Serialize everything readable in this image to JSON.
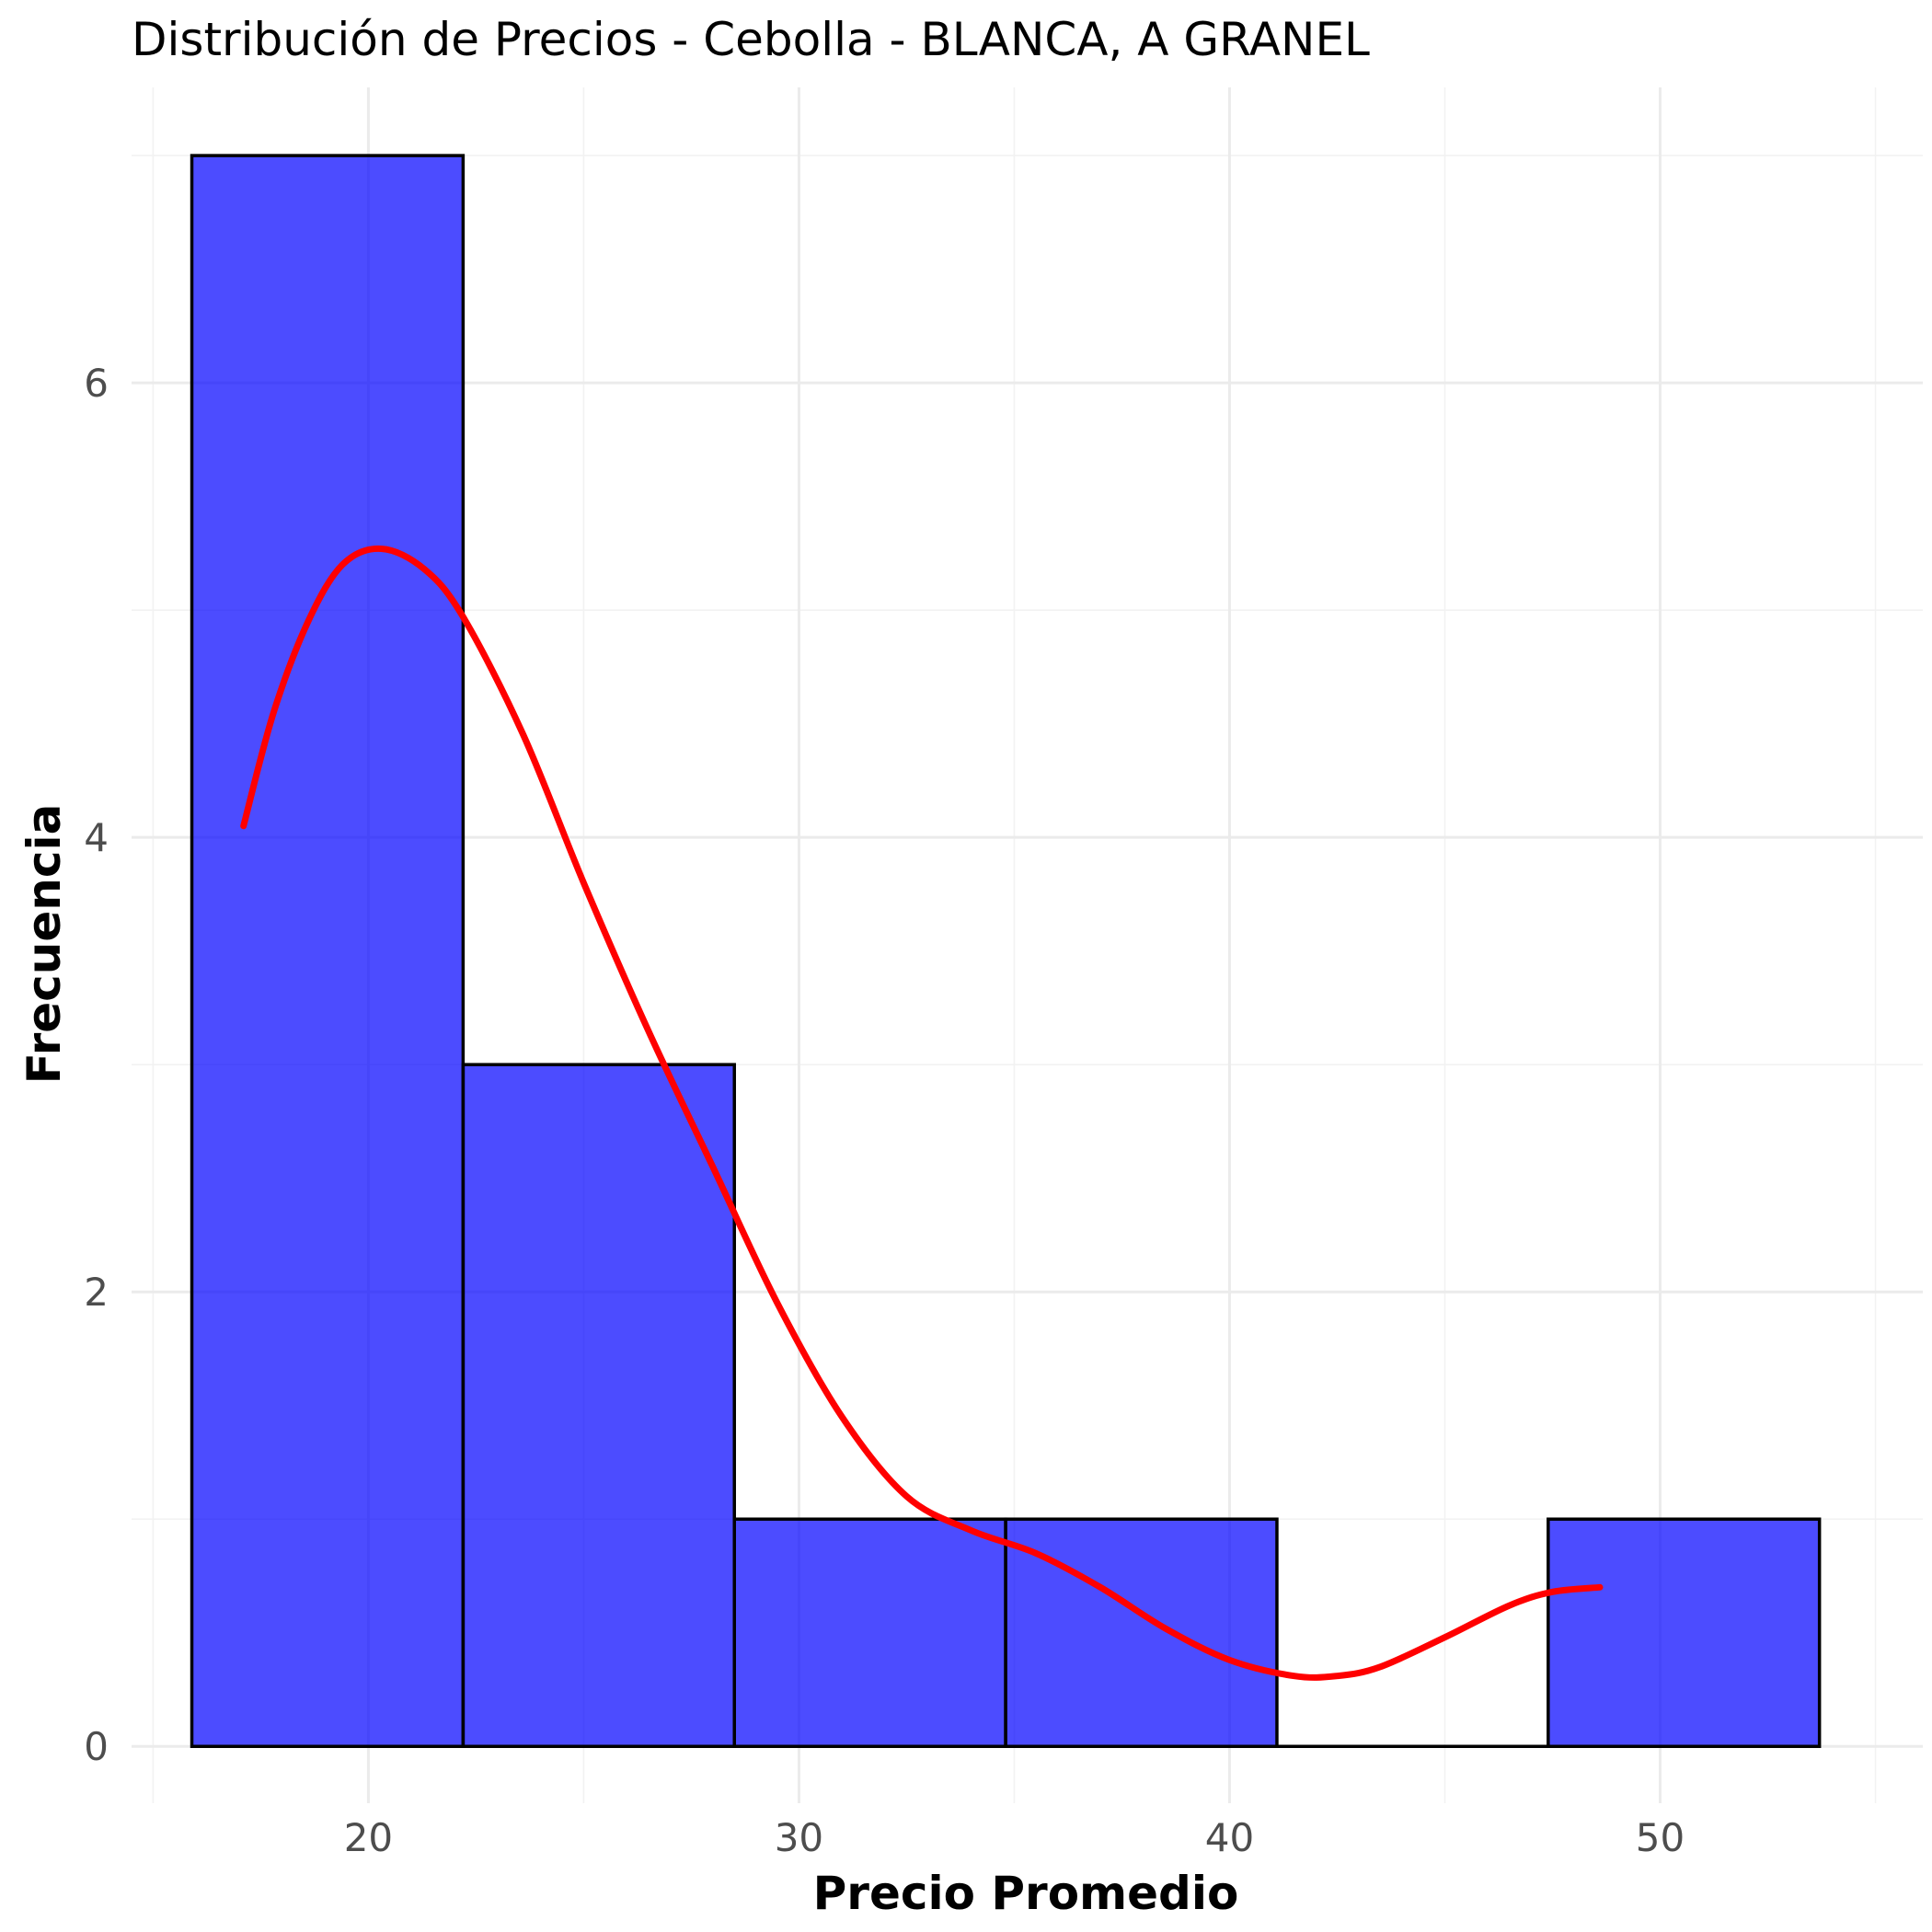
{
  "chart_data": {
    "type": "bar",
    "subtype": "histogram",
    "title": "Distribución de Precios - Cebolla - BLANCA, A GRANEL",
    "xlabel": "Precio Promedio",
    "ylabel": "Frecuencia",
    "xlim": [
      14.5,
      56.1
    ],
    "ylim": [
      -0.25,
      7.3
    ],
    "x_ticks": [
      20,
      30,
      40,
      50
    ],
    "y_ticks": [
      0,
      2,
      4,
      6
    ],
    "bins": [
      {
        "start": 15.9,
        "end": 22.2,
        "count": 7
      },
      {
        "start": 22.2,
        "end": 28.5,
        "count": 3
      },
      {
        "start": 28.5,
        "end": 34.8,
        "count": 1
      },
      {
        "start": 34.8,
        "end": 41.1,
        "count": 1
      },
      {
        "start": 41.1,
        "end": 47.4,
        "count": 0
      },
      {
        "start": 47.4,
        "end": 53.7,
        "count": 1
      }
    ],
    "density_curve": {
      "x": [
        17.1,
        17.8,
        18.6,
        19.4,
        20.3,
        21.3,
        22.2,
        23.6,
        25.0,
        26.5,
        28.0,
        29.5,
        31.0,
        32.5,
        34.0,
        35.5,
        37.0,
        38.5,
        40.0,
        41.5,
        42.5,
        43.5,
        45.0,
        46.5,
        47.5,
        48.6
      ],
      "y": [
        4.05,
        4.55,
        4.95,
        5.2,
        5.27,
        5.18,
        4.97,
        4.45,
        3.8,
        3.15,
        2.55,
        1.95,
        1.45,
        1.1,
        0.95,
        0.85,
        0.7,
        0.52,
        0.38,
        0.31,
        0.31,
        0.35,
        0.48,
        0.62,
        0.68,
        0.7
      ],
      "color": "#ff0000"
    },
    "bar_color": "#0000ff",
    "grid": true,
    "legend": "none"
  }
}
